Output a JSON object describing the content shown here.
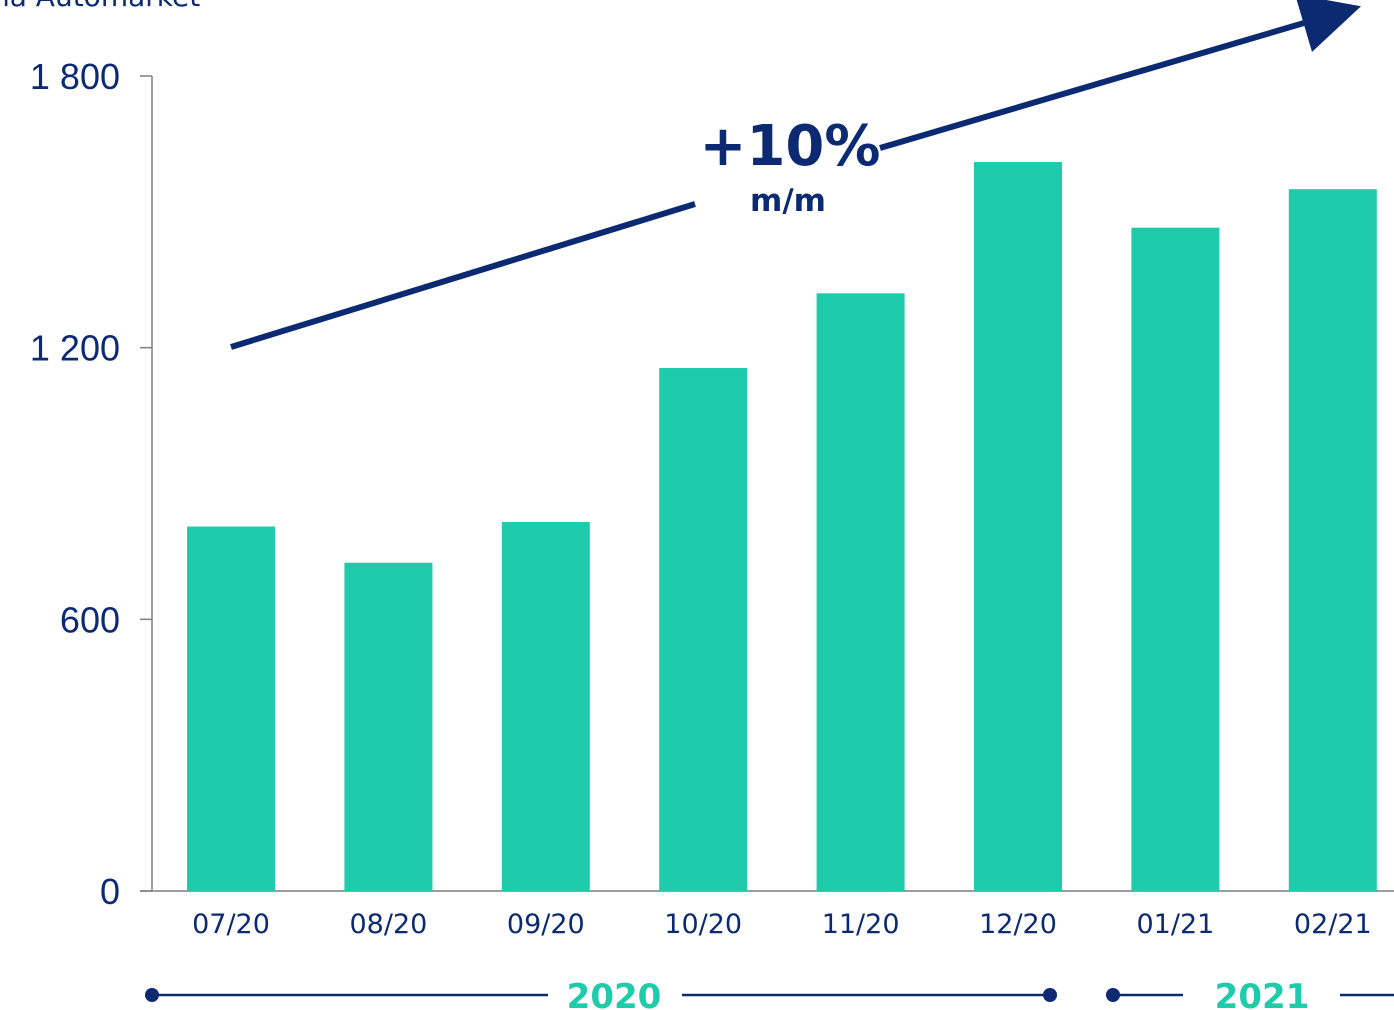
{
  "colors": {
    "bar": "#1ecbaa",
    "text": "#0b2a72",
    "axis": "#7f7f7f",
    "arrow": "#0b2a72",
    "year_line": "#0b2a72",
    "year_text": "#1ecbaa"
  },
  "header": {
    "title_fragment": "na Automarket"
  },
  "annotation": {
    "growth": "+10%",
    "unit": "m/m"
  },
  "years": [
    {
      "label": "2020"
    },
    {
      "label": "2021"
    }
  ],
  "chart_data": {
    "type": "bar",
    "categories": [
      "07/20",
      "08/20",
      "09/20",
      "10/20",
      "11/20",
      "12/20",
      "01/21",
      "02/21"
    ],
    "values": [
      805,
      725,
      815,
      1155,
      1320,
      1610,
      1465,
      1550
    ],
    "yticks": [
      0,
      600,
      1200,
      1800
    ],
    "ytick_labels": [
      "0",
      "600",
      "1 200",
      "1 800"
    ],
    "ylim": [
      0,
      1800
    ],
    "grid": false,
    "legend": "none"
  }
}
